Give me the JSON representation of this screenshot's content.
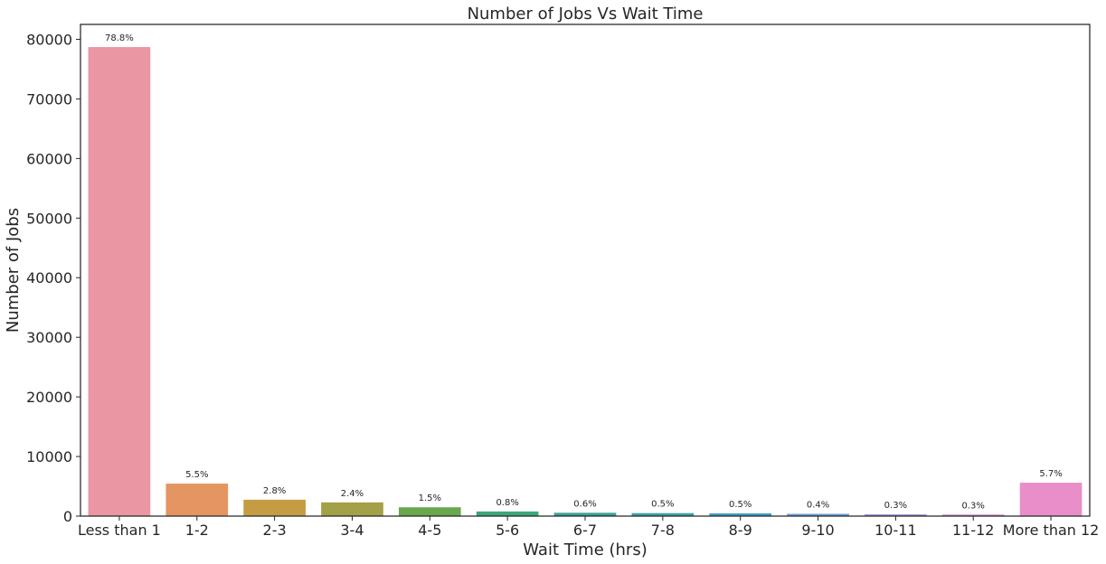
{
  "chart_data": {
    "type": "bar",
    "title": "Number of Jobs Vs Wait Time",
    "xlabel": "Wait Time (hrs)",
    "ylabel": "Number of Jobs",
    "ylim": [
      0,
      82500
    ],
    "yticks": [
      "0",
      "10000",
      "20000",
      "30000",
      "40000",
      "50000",
      "60000",
      "70000",
      "80000"
    ],
    "grid": false,
    "categories": [
      "Less than 1",
      "1-2",
      "2-3",
      "3-4",
      "4-5",
      "5-6",
      "6-7",
      "7-8",
      "8-9",
      "9-10",
      "10-11",
      "11-12",
      "More than 12"
    ],
    "values": [
      78700,
      5450,
      2750,
      2300,
      1480,
      780,
      560,
      500,
      460,
      380,
      290,
      260,
      5600
    ],
    "labels": [
      "78.8%",
      "5.5%",
      "2.8%",
      "2.4%",
      "1.5%",
      "0.8%",
      "0.6%",
      "0.5%",
      "0.5%",
      "0.4%",
      "0.3%",
      "0.3%",
      "5.7%"
    ],
    "colors": [
      "#ea96a3",
      "#e49561",
      "#c59c44",
      "#a3a047",
      "#6aa84f",
      "#3ca87a",
      "#3ba395",
      "#3aa2a6",
      "#3da0c0",
      "#6c9fd6",
      "#a38fd8",
      "#d386d6",
      "#e88ec8"
    ]
  }
}
